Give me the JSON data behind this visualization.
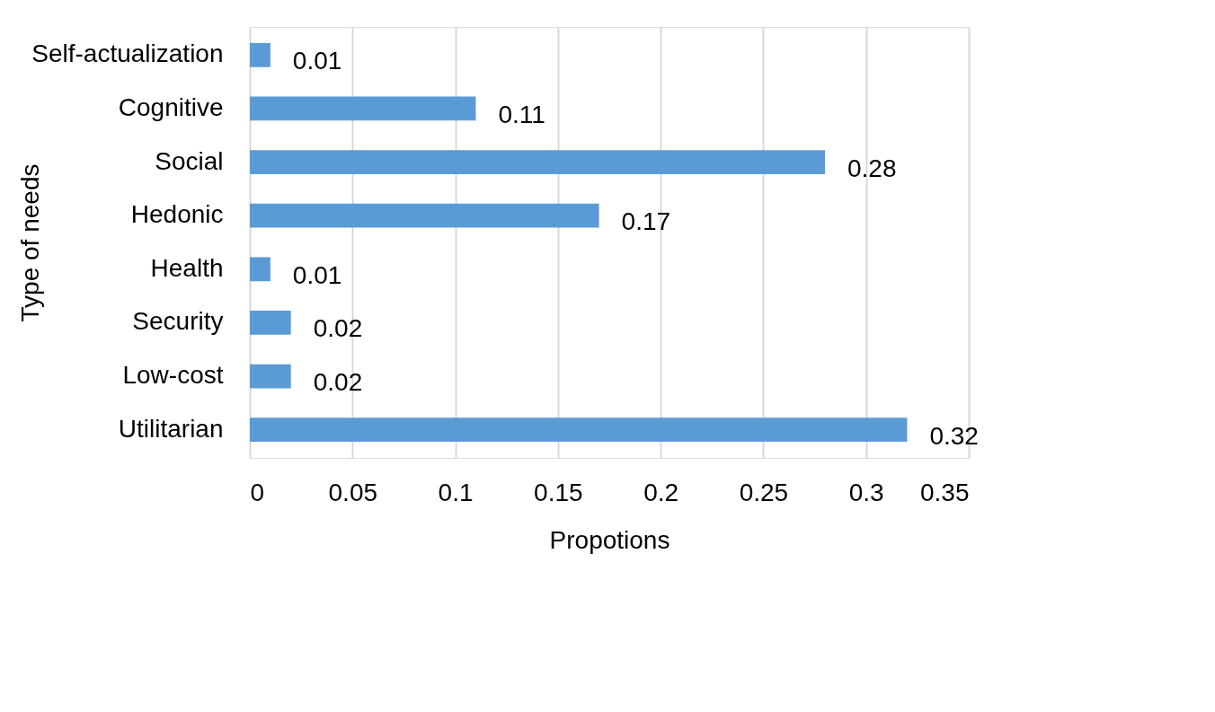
{
  "chart_data": {
    "type": "bar",
    "orientation": "horizontal",
    "xlabel": "Propotions",
    "ylabel": "Type of needs",
    "categories": [
      "Self-actualization",
      "Cognitive",
      "Social",
      "Hedonic",
      "Health",
      "Security",
      "Low-cost",
      "Utilitarian"
    ],
    "values": [
      0.01,
      0.11,
      0.28,
      0.17,
      0.01,
      0.02,
      0.02,
      0.32
    ],
    "color": "#5b9bd5",
    "xlim": [
      0,
      0.35
    ],
    "xticks": [
      0,
      0.05,
      0.1,
      0.15,
      0.2,
      0.25,
      0.3,
      0.35
    ],
    "grid": "x",
    "data_labels": true
  }
}
